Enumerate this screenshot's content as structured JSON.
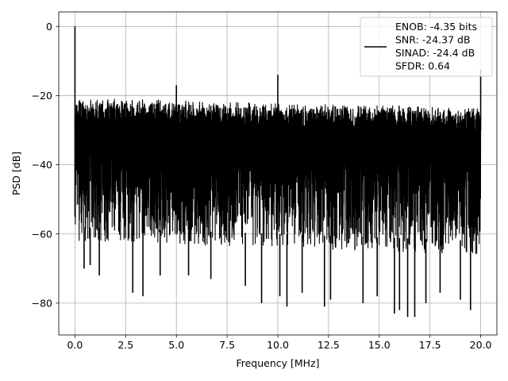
{
  "chart_data": {
    "type": "line",
    "title": "",
    "xlabel": "Frequency [MHz]",
    "ylabel": "PSD [dB]",
    "xlim": [
      -0.8,
      20.8
    ],
    "ylim": [
      -89.2,
      4.2
    ],
    "xticks": [
      0.0,
      2.5,
      5.0,
      7.5,
      10.0,
      12.5,
      15.0,
      17.5,
      20.0
    ],
    "xtick_labels": [
      "0.0",
      "2.5",
      "5.0",
      "7.5",
      "10.0",
      "12.5",
      "15.0",
      "17.5",
      "20.0"
    ],
    "yticks": [
      0,
      -20,
      -40,
      -60,
      -80
    ],
    "ytick_labels": [
      "0",
      "−20",
      "−40",
      "−60",
      "−80"
    ],
    "grid": true,
    "legend_position": "top-right",
    "legend": [
      {
        "line_color": "#000000",
        "lines": [
          "ENOB: -4.35 bits",
          "SNR: -24.37 dB",
          "SINAD: -24.4 dB",
          "SFDR: 0.64"
        ]
      }
    ],
    "series": [
      {
        "color": "#000000",
        "noise": {
          "x_start": 0.0,
          "x_end": 20.0,
          "upper_envelope": [
            [
              0.0,
              -22.0
            ],
            [
              5.0,
              -22.5
            ],
            [
              10.0,
              -23.5
            ],
            [
              15.0,
              -24.0
            ],
            [
              20.0,
              -25.0
            ]
          ],
          "lower_envelope": [
            [
              0.0,
              -62.0
            ],
            [
              5.0,
              -63.0
            ],
            [
              10.0,
              -64.0
            ],
            [
              15.0,
              -65.0
            ],
            [
              20.0,
              -66.0
            ]
          ],
          "deep_dips": [
            [
              0.45,
              -70
            ],
            [
              0.75,
              -69
            ],
            [
              1.2,
              -72
            ],
            [
              2.85,
              -77
            ],
            [
              3.35,
              -78
            ],
            [
              4.2,
              -72
            ],
            [
              5.6,
              -72
            ],
            [
              6.7,
              -73
            ],
            [
              8.4,
              -75
            ],
            [
              9.2,
              -80
            ],
            [
              10.1,
              -78
            ],
            [
              10.45,
              -81
            ],
            [
              11.2,
              -77
            ],
            [
              12.3,
              -81
            ],
            [
              12.6,
              -79
            ],
            [
              14.2,
              -80
            ],
            [
              14.9,
              -78
            ],
            [
              15.75,
              -83
            ],
            [
              16.0,
              -82
            ],
            [
              16.4,
              -84
            ],
            [
              16.75,
              -84
            ],
            [
              17.3,
              -80
            ],
            [
              18.0,
              -77
            ],
            [
              19.0,
              -79
            ],
            [
              19.5,
              -82
            ]
          ]
        },
        "peaks": [
          {
            "x": 0.0,
            "y": 0.0
          },
          {
            "x": 5.0,
            "y": -17.0
          },
          {
            "x": 10.0,
            "y": -14.0
          },
          {
            "x": 20.0,
            "y": -12.5
          }
        ]
      }
    ]
  }
}
